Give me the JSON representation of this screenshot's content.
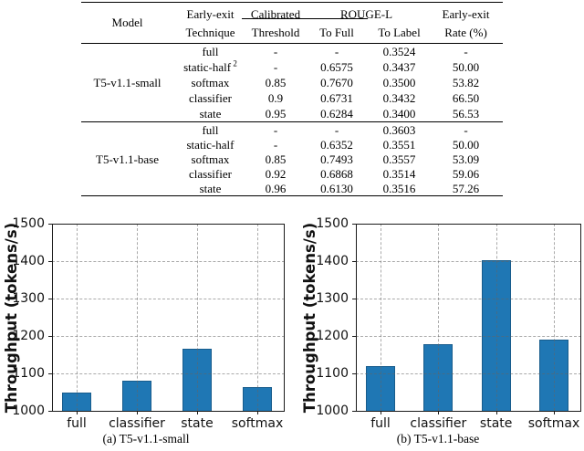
{
  "table": {
    "header": {
      "model": "Model",
      "technique_l1": "Early-exit",
      "technique_l2": "Technique",
      "threshold_l1": "Calibrated",
      "threshold_l2": "Threshold",
      "rouge": "ROUGE-L",
      "to_full": "To Full",
      "to_label": "To Label",
      "rate_l1": "Early-exit",
      "rate_l2": "Rate (%)"
    },
    "sections": [
      {
        "model": "T5-v1.1-small",
        "rows": [
          {
            "technique": "full",
            "sup": "",
            "threshold": "-",
            "to_full": "-",
            "to_label": "0.3524",
            "rate": "-"
          },
          {
            "technique": "static-half",
            "sup": "2",
            "threshold": "-",
            "to_full": "0.6575",
            "to_label": "0.3437",
            "rate": "50.00"
          },
          {
            "technique": "softmax",
            "sup": "",
            "threshold": "0.85",
            "to_full": "0.7670",
            "to_label": "0.3500",
            "rate": "53.82"
          },
          {
            "technique": "classifier",
            "sup": "",
            "threshold": "0.9",
            "to_full": "0.6731",
            "to_label": "0.3432",
            "rate": "66.50"
          },
          {
            "technique": "state",
            "sup": "",
            "threshold": "0.95",
            "to_full": "0.6284",
            "to_label": "0.3400",
            "rate": "56.53"
          }
        ]
      },
      {
        "model": "T5-v1.1-base",
        "rows": [
          {
            "technique": "full",
            "sup": "",
            "threshold": "-",
            "to_full": "-",
            "to_label": "0.3603",
            "rate": "-"
          },
          {
            "technique": "static-half",
            "sup": "",
            "threshold": "-",
            "to_full": "0.6352",
            "to_label": "0.3551",
            "rate": "50.00"
          },
          {
            "technique": "softmax",
            "sup": "",
            "threshold": "0.85",
            "to_full": "0.7493",
            "to_label": "0.3557",
            "rate": "53.09"
          },
          {
            "technique": "classifier",
            "sup": "",
            "threshold": "0.92",
            "to_full": "0.6868",
            "to_label": "0.3514",
            "rate": "59.06"
          },
          {
            "technique": "state",
            "sup": "",
            "threshold": "0.96",
            "to_full": "0.6130",
            "to_label": "0.3516",
            "rate": "57.26"
          }
        ]
      }
    ]
  },
  "chart_data": [
    {
      "type": "bar",
      "caption": "(a) T5-v1.1-small",
      "categories": [
        "full",
        "classifier",
        "state",
        "softmax"
      ],
      "values": [
        1048,
        1080,
        1165,
        1064
      ],
      "ylabel": "Throughput (tokens/s)",
      "xlabel": "",
      "ylim": [
        1000,
        1500
      ],
      "yticks": [
        1000,
        1100,
        1200,
        1300,
        1400,
        1500
      ],
      "grid": true,
      "grid_style": "dashed",
      "legend": "none",
      "bar_color": "#1f77b4"
    },
    {
      "type": "bar",
      "caption": "(b) T5-v1.1-base",
      "categories": [
        "full",
        "classifier",
        "state",
        "softmax"
      ],
      "values": [
        1119,
        1177,
        1402,
        1191
      ],
      "ylabel": "Throughput (tokens/s)",
      "xlabel": "",
      "ylim": [
        1000,
        1500
      ],
      "yticks": [
        1000,
        1100,
        1200,
        1300,
        1400,
        1500
      ],
      "grid": true,
      "grid_style": "dashed",
      "legend": "none",
      "bar_color": "#1f77b4"
    }
  ]
}
